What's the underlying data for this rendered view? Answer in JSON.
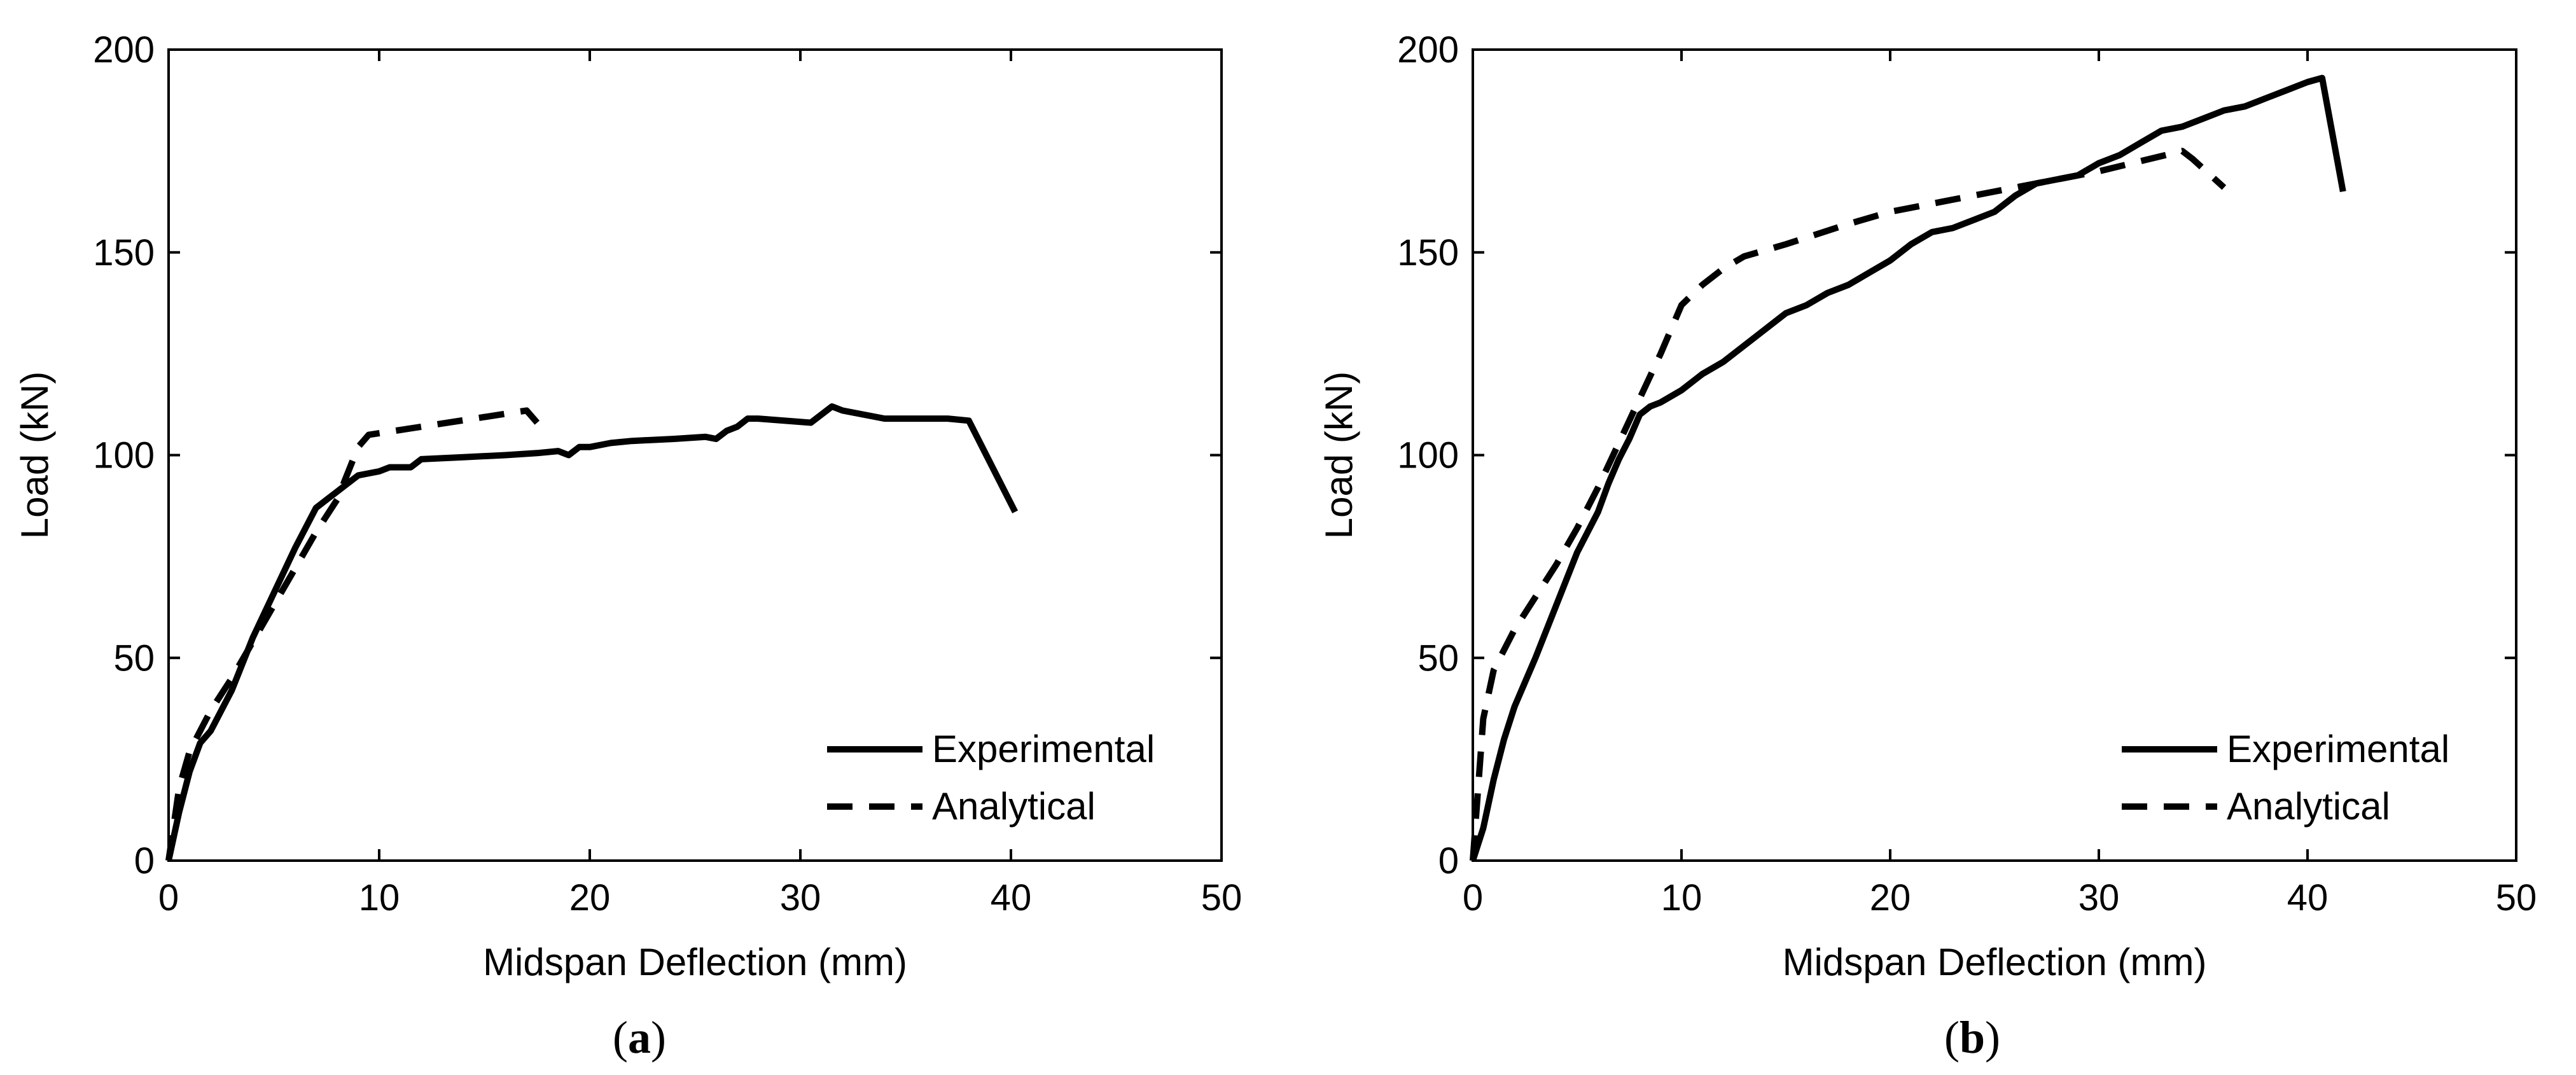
{
  "chart_data": [
    {
      "type": "line",
      "panel_label": "a",
      "title": "",
      "xlabel": "Midspan Deflection (mm)",
      "ylabel": "Load (kN)",
      "xlim": [
        0,
        50
      ],
      "ylim": [
        0,
        200
      ],
      "xticks": [
        "0",
        "10",
        "20",
        "30",
        "40",
        "50"
      ],
      "yticks": [
        "0",
        "50",
        "100",
        "150",
        "200"
      ],
      "legend_position": "bottom-right",
      "series": [
        {
          "name": "Experimental",
          "style": "solid",
          "x": [
            0,
            0.5,
            1,
            1.5,
            2,
            3,
            4,
            5,
            6,
            7,
            7.5,
            8,
            8.5,
            9,
            10,
            10.5,
            11.5,
            12,
            14,
            16,
            17.5,
            18.5,
            19,
            19.5,
            20,
            21,
            22,
            24,
            25.5,
            26,
            26.5,
            27,
            27.5,
            28,
            30.5,
            31.5,
            32,
            34,
            36,
            37,
            38,
            40.2
          ],
          "y": [
            0,
            12,
            22,
            29,
            32,
            42,
            55,
            66,
            77,
            87,
            89,
            91,
            93,
            95,
            96,
            97,
            97,
            99,
            99.5,
            100,
            100.5,
            101,
            100,
            102,
            102,
            103,
            103.5,
            104,
            104.5,
            104,
            106,
            107,
            109,
            109,
            108,
            112,
            111,
            109,
            109,
            109,
            108.5,
            86
          ]
        },
        {
          "name": "Analytical",
          "style": "dashed",
          "x": [
            0,
            0.5,
            1,
            2,
            3,
            4,
            5,
            6,
            7,
            8,
            9,
            9.5,
            17,
            17.5
          ],
          "y": [
            0,
            18,
            27,
            37,
            45,
            54,
            63,
            72,
            81,
            89,
            102,
            105,
            111,
            108
          ]
        }
      ]
    },
    {
      "type": "line",
      "panel_label": "b",
      "title": "",
      "xlabel": "Midspan Deflection (mm)",
      "ylabel": "Load (kN)",
      "xlim": [
        0,
        50
      ],
      "ylim": [
        0,
        200
      ],
      "xticks": [
        "0",
        "10",
        "20",
        "30",
        "40",
        "50"
      ],
      "yticks": [
        "0",
        "50",
        "100",
        "150",
        "200"
      ],
      "legend_position": "bottom-right",
      "series": [
        {
          "name": "Experimental",
          "style": "solid",
          "x": [
            0,
            0.5,
            1,
            1.5,
            2,
            2.5,
            3,
            4,
            5,
            6,
            6.5,
            7,
            7.5,
            8,
            8.5,
            9,
            10,
            11,
            12,
            13,
            14,
            15,
            16,
            17,
            18,
            19,
            20,
            21,
            22,
            23,
            24,
            25,
            26,
            27,
            28,
            29,
            30,
            31,
            32,
            33,
            34,
            35,
            36,
            37,
            38,
            39,
            40,
            40.7,
            41.7
          ],
          "y": [
            0,
            8,
            20,
            30,
            38,
            44,
            50,
            63,
            76,
            86,
            93,
            99,
            104,
            110,
            112,
            113,
            116,
            120,
            123,
            127,
            131,
            135,
            137,
            140,
            142,
            145,
            148,
            152,
            155,
            156,
            158,
            160,
            164,
            167,
            168,
            169,
            172,
            174,
            177,
            180,
            181,
            183,
            185,
            186,
            188,
            190,
            192,
            193,
            165
          ]
        },
        {
          "name": "Analytical",
          "style": "dashed",
          "x": [
            0,
            0.5,
            1,
            2,
            3,
            4,
            5,
            6,
            7,
            8,
            9,
            10,
            11,
            12,
            13,
            15,
            18,
            20,
            25,
            30,
            34,
            34.5,
            36
          ],
          "y": [
            0,
            35,
            47,
            57,
            65,
            73,
            82,
            92,
            103,
            114,
            125,
            137,
            142,
            146,
            149,
            152,
            157,
            160,
            165,
            170,
            175,
            173,
            166
          ]
        }
      ]
    }
  ]
}
